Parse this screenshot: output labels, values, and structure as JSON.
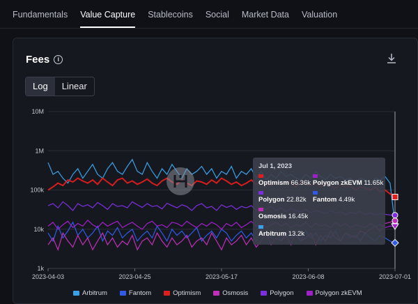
{
  "tabs": [
    {
      "label": "Fundamentals",
      "active": false
    },
    {
      "label": "Value Capture",
      "active": true
    },
    {
      "label": "Stablecoins",
      "active": false
    },
    {
      "label": "Social",
      "active": false
    },
    {
      "label": "Market Data",
      "active": false
    },
    {
      "label": "Valuation",
      "active": false
    }
  ],
  "panel": {
    "title": "Fees",
    "scale_options": [
      "Log",
      "Linear"
    ],
    "selected_scale": "Log"
  },
  "tooltip": {
    "date": "Jul 1, 2023",
    "items": [
      {
        "name": "Optimism",
        "value": "66.36k",
        "color": "#e01e1e"
      },
      {
        "name": "Polygon zkEVM",
        "value": "11.65k",
        "color": "#a020c8"
      },
      {
        "name": "Polygon",
        "value": "22.82k",
        "color": "#7b2fe0"
      },
      {
        "name": "Fantom",
        "value": "4.49k",
        "color": "#2f5be8"
      },
      {
        "name": "Osmosis",
        "value": "16.45k",
        "color": "#c02fb8"
      },
      {
        "name": "Arbitrum",
        "value": "13.2k",
        "color": "#3aa0e8"
      }
    ]
  },
  "chart_data": {
    "type": "line",
    "ylabel": "",
    "xlabel": "",
    "yscale": "log",
    "ylim": [
      1000,
      10000000
    ],
    "yticks": [
      "1k",
      "10k",
      "100k",
      "1M",
      "10M"
    ],
    "xticks": [
      "2023-04-03",
      "2023-04-25",
      "2023-05-17",
      "2023-06-08",
      "2023-07-01"
    ],
    "x_start": "2023-04-03",
    "x_end": "2023-07-01",
    "series": [
      {
        "name": "Arbitrum",
        "color": "#3aa0e8",
        "values": [
          500000,
          250000,
          300000,
          200000,
          150000,
          250000,
          350000,
          200000,
          300000,
          450000,
          250000,
          200000,
          350000,
          500000,
          300000,
          250000,
          400000,
          600000,
          300000,
          250000,
          500000,
          300000,
          200000,
          350000,
          250000,
          450000,
          300000,
          200000,
          350000,
          250000,
          300000,
          400000,
          250000,
          350000,
          200000,
          300000,
          250000,
          400000,
          200000,
          300000,
          250000,
          350000,
          200000,
          300000,
          180000,
          250000,
          200000,
          300000,
          220000,
          250000,
          200000,
          180000,
          250000,
          200000,
          300000,
          220000,
          180000,
          250000,
          200000,
          220000,
          180000,
          200000,
          150000,
          200000,
          180000,
          150000,
          200000,
          180000,
          220000,
          150000,
          13200
        ]
      },
      {
        "name": "Fantom",
        "color": "#2f5be8",
        "values": [
          8000,
          5000,
          12000,
          6000,
          9000,
          15000,
          7000,
          10000,
          6000,
          8000,
          12000,
          5000,
          9000,
          7000,
          11000,
          6000,
          8000,
          10000,
          5000,
          7000,
          9000,
          6000,
          12000,
          8000,
          5000,
          10000,
          7000,
          9000,
          6000,
          8000,
          11000,
          5000,
          7000,
          9000,
          6000,
          10000,
          8000,
          5000,
          7000,
          9000,
          6000,
          8000,
          5000,
          10000,
          7000,
          6000,
          9000,
          5000,
          8000,
          6000,
          7000,
          5000,
          9000,
          6000,
          8000,
          5000,
          7000,
          6000,
          9000,
          5000,
          8000,
          6000,
          7000,
          5000,
          8000,
          6000,
          5000,
          7000,
          6000,
          5000,
          4490
        ]
      },
      {
        "name": "Optimism",
        "color": "#e01e1e",
        "values": [
          100000,
          120000,
          150000,
          130000,
          180000,
          160000,
          200000,
          170000,
          150000,
          180000,
          140000,
          200000,
          160000,
          130000,
          180000,
          200000,
          150000,
          170000,
          140000,
          160000,
          190000,
          150000,
          130000,
          170000,
          200000,
          160000,
          140000,
          180000,
          150000,
          130000,
          170000,
          160000,
          140000,
          180000,
          150000,
          200000,
          170000,
          140000,
          160000,
          130000,
          150000,
          180000,
          140000,
          170000,
          150000,
          130000,
          160000,
          140000,
          170000,
          150000,
          120000,
          160000,
          140000,
          130000,
          150000,
          120000,
          140000,
          130000,
          110000,
          140000,
          120000,
          130000,
          100000,
          120000,
          110000,
          100000,
          120000,
          90000,
          100000,
          80000,
          66360
        ]
      },
      {
        "name": "Osmosis",
        "color": "#c02fb8",
        "values": [
          4000,
          6000,
          3000,
          8000,
          5000,
          3500,
          7000,
          4000,
          6000,
          3000,
          5000,
          8000,
          4000,
          6000,
          3500,
          5000,
          4000,
          7000,
          3000,
          5000,
          6000,
          4000,
          8000,
          5000,
          3500,
          6000,
          4000,
          5000,
          7000,
          3500,
          5000,
          6000,
          4000,
          8000,
          5000,
          3000,
          6000,
          4000,
          5000,
          7000,
          4000,
          6000,
          3500,
          5000,
          8000,
          4000,
          6000,
          5000,
          7000,
          4000,
          9000,
          5000,
          6000,
          8000,
          4000,
          7000,
          5000,
          9000,
          6000,
          5000,
          8000,
          7000,
          6000,
          9000,
          8000,
          10000,
          12000,
          9000,
          14000,
          15000,
          16450
        ]
      },
      {
        "name": "Polygon",
        "color": "#7b2fe0",
        "values": [
          40000,
          45000,
          35000,
          50000,
          40000,
          30000,
          45000,
          38000,
          42000,
          35000,
          48000,
          40000,
          32000,
          45000,
          38000,
          40000,
          35000,
          50000,
          42000,
          36000,
          45000,
          38000,
          40000,
          33000,
          46000,
          40000,
          35000,
          42000,
          38000,
          30000,
          40000,
          45000,
          35000,
          38000,
          30000,
          42000,
          36000,
          40000,
          32000,
          38000,
          35000,
          40000,
          30000,
          36000,
          32000,
          38000,
          30000,
          35000,
          28000,
          34000,
          30000,
          28000,
          32000,
          26000,
          30000,
          28000,
          25000,
          30000,
          26000,
          28000,
          24000,
          27000,
          25000,
          28000,
          24000,
          26000,
          23000,
          25000,
          24000,
          23000,
          22820
        ]
      },
      {
        "name": "Polygon zkEVM",
        "color": "#a020c8",
        "values": [
          12000,
          15000,
          10000,
          13000,
          16000,
          11000,
          14000,
          12000,
          17000,
          13000,
          11000,
          15000,
          12000,
          14000,
          16000,
          11000,
          13000,
          15000,
          12000,
          10000,
          14000,
          16000,
          12000,
          13000,
          11000,
          15000,
          14000,
          12000,
          16000,
          13000,
          11000,
          14000,
          12000,
          15000,
          13000,
          10000,
          14000,
          12000,
          15000,
          11000,
          13000,
          16000,
          12000,
          14000,
          11000,
          13000,
          15000,
          12000,
          14000,
          11000,
          13000,
          12000,
          15000,
          11000,
          14000,
          12000,
          13000,
          11000,
          15000,
          12000,
          14000,
          11000,
          13000,
          12000,
          11000,
          14000,
          12000,
          13000,
          11000,
          12000,
          11650
        ]
      }
    ]
  }
}
